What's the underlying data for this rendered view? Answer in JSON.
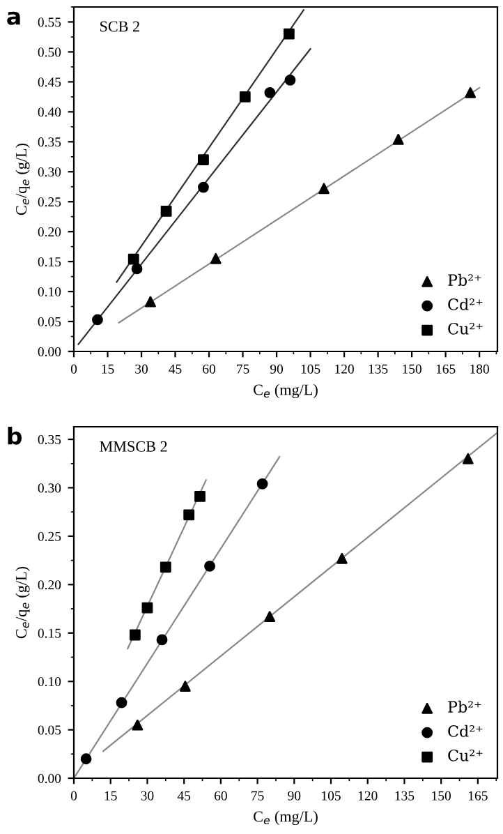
{
  "chart_data": [
    {
      "type": "scatter",
      "title": "a",
      "annotations": [
        "SCB 2"
      ],
      "xlabel": "C$_{e}$ (mg/L)",
      "ylabel": "C$_{e}$/q$_{e}$ (g/L)",
      "xlim": [
        0,
        188
      ],
      "xticks": [
        0,
        15,
        30,
        45,
        60,
        75,
        90,
        105,
        120,
        135,
        150,
        165,
        180
      ],
      "ylim": [
        0,
        0.575
      ],
      "yticks": [
        {
          "value": 0,
          "label": "0.00"
        },
        {
          "value": 0.05,
          "label": "0.05"
        },
        {
          "value": 0.1,
          "label": "0.10"
        },
        {
          "value": 0.15,
          "label": "0.15"
        },
        {
          "value": 0.2,
          "label": "0.20"
        },
        {
          "value": 0.25,
          "label": "0.25"
        },
        {
          "value": 0.3,
          "label": "0.30"
        },
        {
          "value": 0.35,
          "label": "0.35"
        },
        {
          "value": 0.4,
          "label": "0.40"
        },
        {
          "value": 0.45,
          "label": "0.45"
        },
        {
          "value": 0.5,
          "label": "0.50"
        },
        {
          "value": 0.55,
          "label": "0.55"
        }
      ],
      "legend": "bottom right",
      "grid": false,
      "series": [
        {
          "name": "Pb²⁺",
          "marker": "triangle",
          "color": "#000000",
          "x": [
            34,
            63,
            111,
            144,
            176
          ],
          "values": [
            0.083,
            0.155,
            0.272,
            0.354,
            0.432
          ]
        },
        {
          "name": "Cd²⁺",
          "marker": "circle",
          "color": "#000000",
          "x": [
            10.5,
            28,
            57.5,
            87,
            96
          ],
          "values": [
            0.053,
            0.138,
            0.274,
            0.432,
            0.453
          ]
        },
        {
          "name": "Cu²⁺",
          "marker": "square",
          "color": "#000000",
          "x": [
            26.5,
            41,
            57.5,
            76,
            95.5
          ],
          "values": [
            0.154,
            0.234,
            0.32,
            0.425,
            0.53
          ]
        },
        {
          "type": "line",
          "marker": "none",
          "color": "#888888",
          "x": [
            20,
            180
          ],
          "values": [
            0.048,
            0.44
          ]
        },
        {
          "type": "line",
          "marker": "none",
          "color": "#333333",
          "x": [
            2,
            105
          ],
          "values": [
            0.012,
            0.505
          ]
        },
        {
          "type": "line",
          "marker": "none",
          "color": "#333333",
          "x": [
            19,
            102
          ],
          "values": [
            0.116,
            0.57
          ]
        }
      ]
    },
    {
      "type": "scatter",
      "title": "b",
      "annotations": [
        "MMSCB 2"
      ],
      "xlabel": "C$_{e}$ (mg/L)",
      "ylabel": "C$_{e}$/q$_{e}$ (g/L)",
      "xlim": [
        0,
        173
      ],
      "xticks": [
        0,
        15,
        30,
        45,
        60,
        75,
        90,
        105,
        120,
        135,
        150,
        165
      ],
      "ylim": [
        0,
        0.363
      ],
      "yticks": [
        {
          "value": 0,
          "label": "0.00"
        },
        {
          "value": 0.05,
          "label": "0.05"
        },
        {
          "value": 0.1,
          "label": "0.10"
        },
        {
          "value": 0.15,
          "label": "0.15"
        },
        {
          "value": 0.2,
          "label": "0.20"
        },
        {
          "value": 0.25,
          "label": "0.25"
        },
        {
          "value": 0.3,
          "label": "0.30"
        },
        {
          "value": 0.35,
          "label": "0.35"
        }
      ],
      "legend": "bottom right",
      "grid": false,
      "series": [
        {
          "name": "Pb²⁺",
          "marker": "triangle",
          "color": "#000000",
          "x": [
            26,
            45.5,
            80,
            109.5,
            161
          ],
          "values": [
            0.055,
            0.095,
            0.167,
            0.227,
            0.33
          ]
        },
        {
          "name": "Cd²⁺",
          "marker": "circle",
          "color": "#000000",
          "x": [
            5,
            19.5,
            36,
            55.5,
            77
          ],
          "values": [
            0.02,
            0.078,
            0.143,
            0.219,
            0.304
          ]
        },
        {
          "name": "Cu²⁺",
          "marker": "square",
          "color": "#000000",
          "x": [
            25,
            30,
            37.5,
            47,
            51.5
          ],
          "values": [
            0.148,
            0.176,
            0.218,
            0.272,
            0.291
          ]
        },
        {
          "type": "line",
          "marker": "none",
          "color": "#888888",
          "x": [
            12,
            173
          ],
          "values": [
            0.028,
            0.357
          ]
        },
        {
          "type": "line",
          "marker": "none",
          "color": "#888888",
          "x": [
            0,
            84
          ],
          "values": [
            0,
            0.332
          ]
        },
        {
          "type": "line",
          "marker": "none",
          "color": "#888888",
          "x": [
            22,
            54
          ],
          "values": [
            0.134,
            0.308
          ]
        }
      ]
    }
  ]
}
